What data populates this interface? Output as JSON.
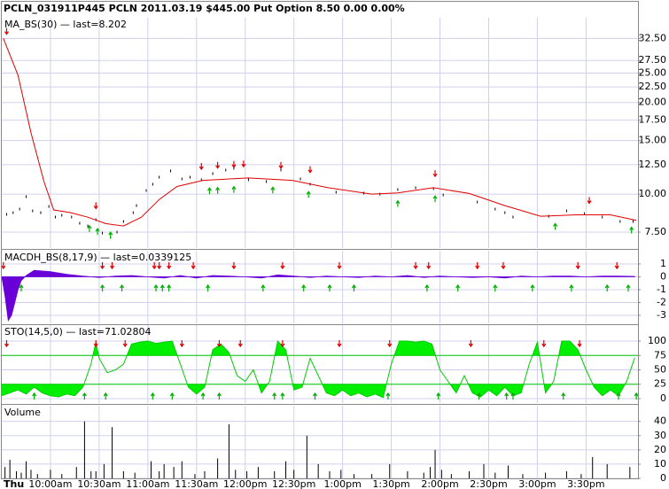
{
  "chart_data": [
    {
      "type": "line",
      "title": "PCLN_031911P445 PCLN 2011.03.19 $445.00 Put Option   8.50  0.00  0.00%",
      "x_day_label": "Thu",
      "xlim": [
        0,
        392
      ],
      "xticks": [
        {
          "value": 30,
          "label": "10:00am"
        },
        {
          "value": 60,
          "label": "10:30am"
        },
        {
          "value": 90,
          "label": "11:00am"
        },
        {
          "value": 120,
          "label": "11:30am"
        },
        {
          "value": 150,
          "label": "12:00pm"
        },
        {
          "value": 180,
          "label": "12:30pm"
        },
        {
          "value": 210,
          "label": "1:00pm"
        },
        {
          "value": 240,
          "label": "1:30pm"
        },
        {
          "value": 270,
          "label": "2:00pm"
        },
        {
          "value": 300,
          "label": "2:30pm"
        },
        {
          "value": 330,
          "label": "3:00pm"
        },
        {
          "value": 360,
          "label": "3:30pm"
        }
      ],
      "legend": "MA_BS(30) — last=8.202",
      "color": "#e00000",
      "log_scale": true,
      "grid": true,
      "ylim": [
        6.65,
        38
      ],
      "yticks": [
        {
          "value": 7.5,
          "label": "7.50"
        },
        {
          "value": 10,
          "label": "10.00"
        },
        {
          "value": 12.5,
          "label": "12.50"
        },
        {
          "value": 15,
          "label": "15.00"
        },
        {
          "value": 17.5,
          "label": "17.50"
        },
        {
          "value": 20,
          "label": "20.00"
        },
        {
          "value": 22.5,
          "label": "22.50"
        },
        {
          "value": 25,
          "label": "25.00"
        },
        {
          "value": 27.5,
          "label": "27.50"
        },
        {
          "value": 32.5,
          "label": "32.50"
        }
      ],
      "x": [
        1,
        10,
        18,
        26,
        32,
        42,
        53,
        64,
        75,
        86,
        97,
        108,
        124,
        152,
        179,
        201,
        228,
        244,
        266,
        288,
        310,
        332,
        354,
        375,
        391
      ],
      "values": [
        32.5,
        24.6,
        15.9,
        11.0,
        8.87,
        8.7,
        8.4,
        8.0,
        7.86,
        8.4,
        9.6,
        10.6,
        11.1,
        11.3,
        11.1,
        10.5,
        10.0,
        10.1,
        10.5,
        10.05,
        9.17,
        8.46,
        8.55,
        8.55,
        8.202
      ],
      "price": {
        "color": "#000000",
        "x": [
          3,
          7,
          11,
          15,
          19,
          24,
          29,
          33,
          37,
          43,
          48,
          53,
          58,
          62,
          67,
          71,
          75,
          81,
          83,
          89,
          93,
          97,
          104,
          111,
          116,
          123,
          130,
          138,
          143,
          152,
          163,
          172,
          184,
          190,
          206,
          223,
          233,
          244,
          255,
          266,
          272,
          293,
          304,
          310,
          315,
          337,
          348,
          359,
          370,
          381,
          389
        ],
        "values": [
          8.58,
          8.69,
          8.93,
          9.81,
          8.81,
          8.69,
          9.11,
          8.41,
          8.52,
          8.41,
          8.02,
          7.86,
          8.24,
          7.45,
          7.21,
          7.5,
          8.13,
          8.69,
          9.17,
          10.28,
          10.78,
          11.37,
          11.92,
          11.22,
          11.37,
          11.15,
          11.68,
          12.0,
          12.16,
          11.15,
          11.0,
          12.0,
          11.22,
          10.78,
          10.15,
          10.08,
          10.0,
          10.35,
          10.49,
          10.42,
          9.94,
          9.42,
          8.93,
          8.69,
          8.41,
          8.46,
          8.81,
          8.63,
          8.41,
          8.13,
          8.13
        ]
      },
      "signals": {
        "sell": [
          3,
          58,
          123,
          133,
          143,
          149,
          172,
          190,
          267,
          362
        ],
        "buy": [
          54,
          59,
          67,
          128,
          133,
          143,
          167,
          189,
          244,
          267,
          341,
          388
        ]
      }
    },
    {
      "type": "area",
      "legend": "MACDH_BS(8,17,9) — last=0.0339125",
      "color": "#6a00d8",
      "grid": true,
      "ylim": [
        -3.62,
        2.03
      ],
      "yticks": [
        1,
        0,
        -1,
        -2,
        -3
      ],
      "x": [
        0,
        2,
        4,
        6,
        8,
        10,
        12,
        15,
        20,
        30,
        40,
        50,
        60,
        70,
        80,
        90,
        100,
        110,
        120,
        130,
        140,
        150,
        160,
        170,
        180,
        190,
        200,
        210,
        220,
        230,
        240,
        250,
        260,
        270,
        280,
        290,
        300,
        310,
        320,
        330,
        340,
        350,
        360,
        370,
        380,
        390
      ],
      "values": [
        0,
        -1.5,
        -3.4,
        -3.0,
        -2.0,
        -1.0,
        -0.3,
        0.1,
        0.5,
        0.4,
        0.2,
        0.05,
        -0.05,
        0.05,
        0.1,
        0,
        -0.1,
        0.1,
        -0.1,
        0.1,
        0.05,
        0,
        -0.1,
        0.15,
        0.05,
        -0.05,
        0.05,
        0,
        -0.05,
        0.05,
        0,
        0.1,
        -0.05,
        0.05,
        0,
        -0.05,
        0,
        -0.1,
        0.05,
        0,
        0.05,
        0.05,
        0,
        0.05,
        0.05,
        0.0339125
      ],
      "signals": {
        "sell": [
          1,
          62,
          68,
          94,
          97,
          103,
          118,
          143,
          173,
          208,
          255,
          263,
          293,
          309,
          355,
          379
        ],
        "buy": [
          12,
          62,
          74,
          95,
          99,
          103,
          127,
          161,
          186,
          202,
          217,
          262,
          281,
          304,
          327,
          351,
          373,
          386
        ]
      }
    },
    {
      "type": "oscillator",
      "legend": "STO(14,5,0) — last=71.02804",
      "color": "#00cc00",
      "fill": "#00ee00",
      "grid": true,
      "ylim": [
        -7.7,
        127.7
      ],
      "yticks": [
        100,
        75,
        50,
        25,
        0
      ],
      "bands": [
        25,
        75
      ],
      "x": [
        0,
        5,
        10,
        15,
        20,
        25,
        30,
        35,
        40,
        45,
        50,
        55,
        58,
        60,
        65,
        70,
        75,
        80,
        85,
        90,
        95,
        100,
        105,
        110,
        115,
        120,
        125,
        130,
        135,
        140,
        145,
        150,
        155,
        160,
        165,
        170,
        175,
        180,
        185,
        190,
        195,
        200,
        205,
        210,
        215,
        220,
        225,
        230,
        235,
        240,
        245,
        250,
        255,
        260,
        265,
        270,
        275,
        280,
        285,
        290,
        295,
        300,
        305,
        310,
        315,
        320,
        325,
        330,
        335,
        340,
        345,
        350,
        355,
        360,
        365,
        370,
        375,
        380,
        385,
        390
      ],
      "values": [
        5,
        10,
        15,
        8,
        20,
        10,
        5,
        3,
        8,
        5,
        20,
        60,
        98,
        70,
        45,
        50,
        60,
        95,
        98,
        100,
        96,
        98,
        100,
        60,
        20,
        8,
        20,
        85,
        95,
        80,
        40,
        30,
        50,
        10,
        30,
        100,
        85,
        15,
        20,
        70,
        40,
        10,
        5,
        15,
        5,
        10,
        3,
        8,
        2,
        60,
        100,
        100,
        98,
        100,
        95,
        50,
        30,
        10,
        40,
        10,
        3,
        15,
        5,
        20,
        5,
        10,
        60,
        98,
        10,
        30,
        100,
        100,
        85,
        50,
        20,
        5,
        15,
        5,
        30,
        71.02804
      ],
      "signals": {
        "sell": [
          3,
          58,
          76,
          111,
          134,
          147,
          173,
          208,
          239,
          289,
          334,
          356
        ],
        "buy": [
          20,
          51,
          64,
          93,
          105,
          124,
          134,
          168,
          173,
          193,
          238,
          269,
          294,
          311,
          315,
          346,
          380,
          391
        ]
      }
    },
    {
      "type": "bar",
      "legend": "Volume",
      "color": "#000000",
      "grid": true,
      "ylim": [
        0,
        51
      ],
      "yticks": [
        40,
        30,
        20,
        10,
        0
      ],
      "x": [
        2,
        5,
        9,
        12,
        15,
        18,
        22,
        30,
        37,
        46,
        51,
        55,
        58,
        63,
        68,
        75,
        82,
        92,
        97,
        100,
        106,
        111,
        119,
        125,
        133,
        140,
        144,
        151,
        158,
        168,
        175,
        180,
        188,
        195,
        202,
        209,
        217,
        228,
        239,
        250,
        260,
        264,
        267,
        271,
        277,
        288,
        297,
        304,
        312,
        321,
        335,
        348,
        357,
        364,
        373,
        387
      ],
      "values": [
        8,
        13,
        5,
        4,
        12,
        6,
        3,
        6,
        3,
        8,
        40,
        5,
        5,
        10,
        36,
        5,
        4,
        12,
        5,
        10,
        8,
        12,
        3,
        5,
        14,
        38,
        6,
        5,
        8,
        5,
        12,
        6,
        30,
        10,
        5,
        6,
        3,
        3,
        10,
        5,
        4,
        8,
        20,
        6,
        3,
        5,
        10,
        4,
        9,
        3,
        4,
        5,
        3,
        15,
        10,
        8
      ]
    }
  ]
}
